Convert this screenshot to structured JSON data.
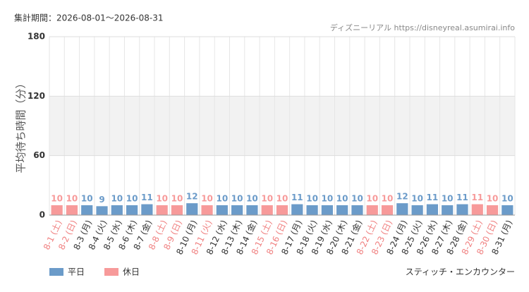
{
  "chart_data": {
    "type": "bar",
    "subtitle": "集計期間：2026-08-01～2026-08-31",
    "source": "ディズニーリアル https://disneyreal.asumirai.info",
    "y_label": "平均待ち時間（分）",
    "footnote": "スティッチ・エンカウンター",
    "categories": [
      "8-1 (土)",
      "8-2 (日)",
      "8-3 (月)",
      "8-4 (火)",
      "8-5 (水)",
      "8-6 (木)",
      "8-7 (金)",
      "8-8 (土)",
      "8-9 (日)",
      "8-10 (月)",
      "8-11 (火)",
      "8-12 (水)",
      "8-13 (木)",
      "8-14 (金)",
      "8-15 (土)",
      "8-16 (日)",
      "8-17 (月)",
      "8-18 (火)",
      "8-19 (水)",
      "8-20 (木)",
      "8-21 (金)",
      "8-22 (土)",
      "8-23 (日)",
      "8-24 (月)",
      "8-25 (火)",
      "8-26 (水)",
      "8-27 (木)",
      "8-28 (金)",
      "8-29 (土)",
      "8-30 (日)",
      "8-31 (月)"
    ],
    "series": [
      {
        "name": "平日",
        "color": "#6b9bc9",
        "label_color": "#333333",
        "values": [
          null,
          null,
          10,
          9,
          10,
          10,
          11,
          null,
          null,
          12,
          null,
          10,
          10,
          10,
          null,
          null,
          11,
          10,
          10,
          10,
          10,
          null,
          null,
          12,
          10,
          11,
          10,
          11,
          null,
          null,
          10
        ]
      },
      {
        "name": "休日",
        "color": "#f79a9a",
        "label_color": "#f08080",
        "values": [
          10,
          10,
          null,
          null,
          null,
          null,
          null,
          10,
          10,
          null,
          10,
          null,
          null,
          null,
          10,
          10,
          null,
          null,
          null,
          null,
          null,
          10,
          10,
          null,
          null,
          null,
          null,
          null,
          11,
          10,
          null
        ]
      }
    ],
    "ylim": [
      0,
      180
    ],
    "yticks": [
      0,
      60,
      120,
      180
    ],
    "grid": true
  }
}
